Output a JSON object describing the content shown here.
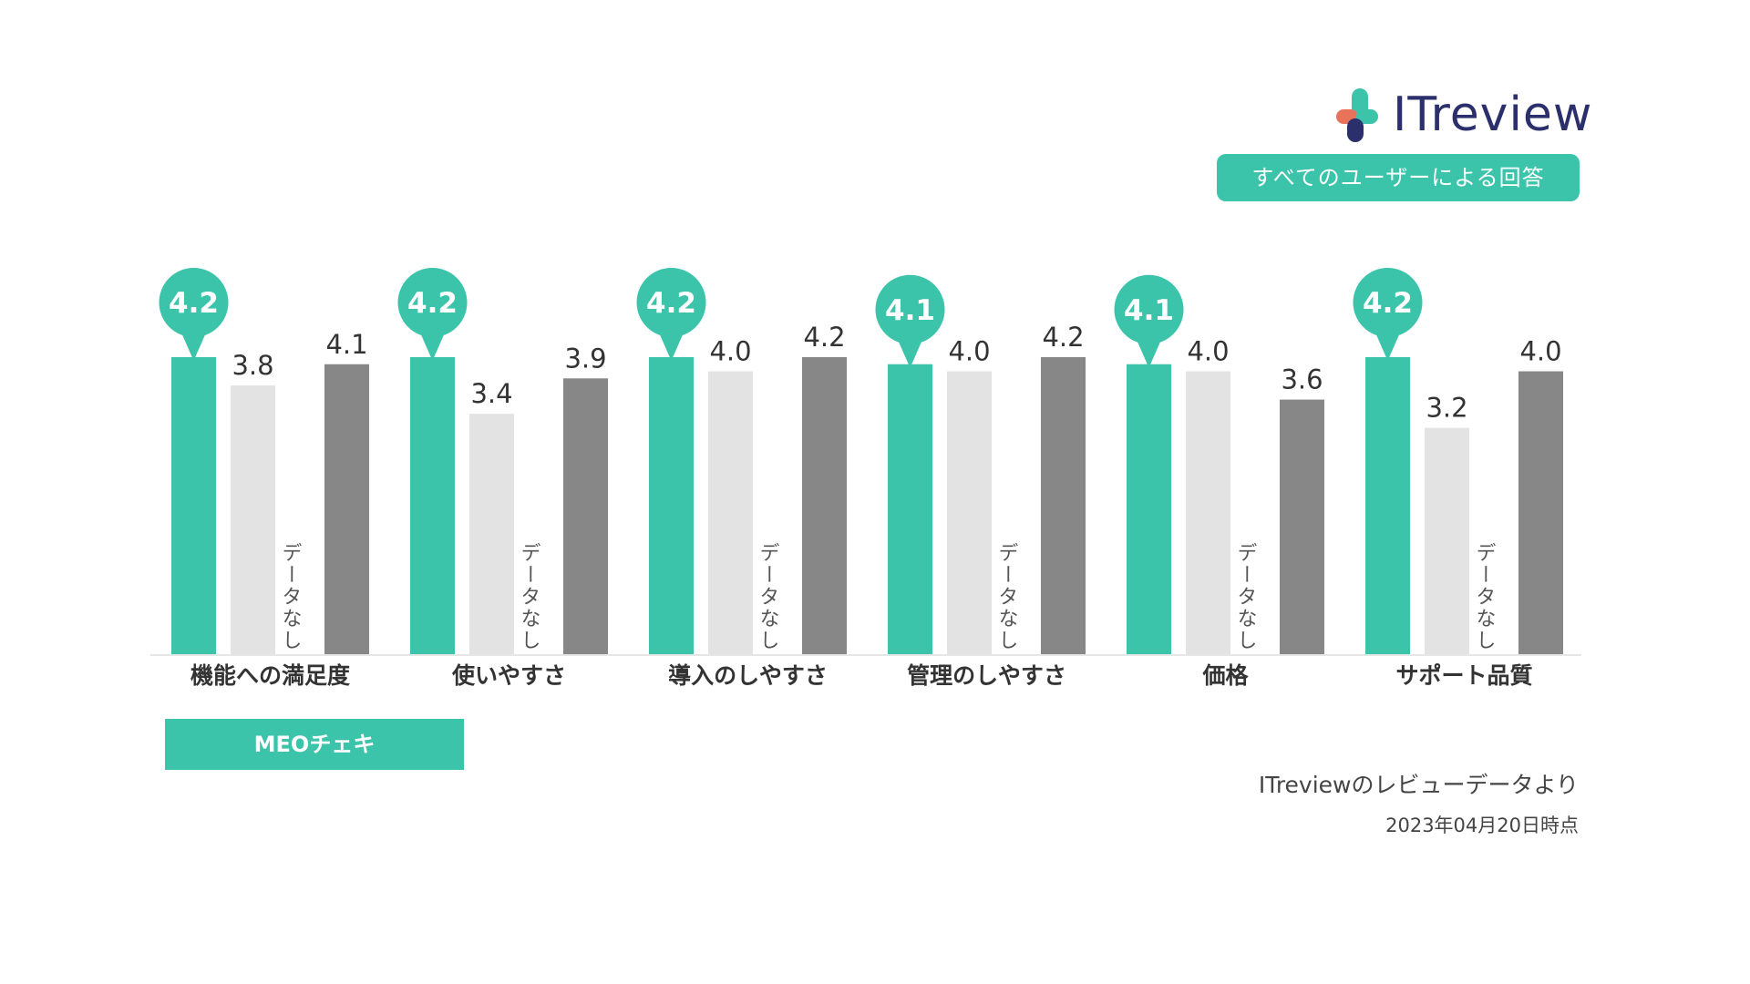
{
  "brand": {
    "logo_text": "ITreview",
    "badge_label": "すべてのユーザーによる回答",
    "accent_color": "#3cc4ab",
    "logo_colors": [
      "#2b2f6b",
      "#e8735a",
      "#3cc4ab"
    ]
  },
  "chart_data": {
    "type": "bar",
    "categories": [
      "機能への満足度",
      "使いやすさ",
      "導入のしやすさ",
      "管理のしやすさ",
      "価格",
      "サポート品質"
    ],
    "series": [
      {
        "name": "MEOチェキ",
        "values": [
          4.2,
          4.2,
          4.2,
          4.1,
          4.1,
          4.2
        ],
        "color": "#3cc4ab",
        "highlight": true
      },
      {
        "name": "",
        "values": [
          3.8,
          3.4,
          4.0,
          4.0,
          4.0,
          3.2
        ],
        "color": "#e3e3e3"
      },
      {
        "name": "",
        "values": [
          null,
          null,
          null,
          null,
          null,
          null
        ],
        "color": "#e3e3e3",
        "no_data_label": "データなし"
      },
      {
        "name": "",
        "values": [
          4.1,
          3.9,
          4.2,
          4.2,
          3.6,
          4.0
        ],
        "color": "#878787"
      }
    ],
    "ylim": [
      0,
      5
    ],
    "grid": false,
    "legend": "bottom-left"
  },
  "footer": {
    "source": "ITreviewのレビューデータより",
    "date": "2023年04月20日時点"
  }
}
